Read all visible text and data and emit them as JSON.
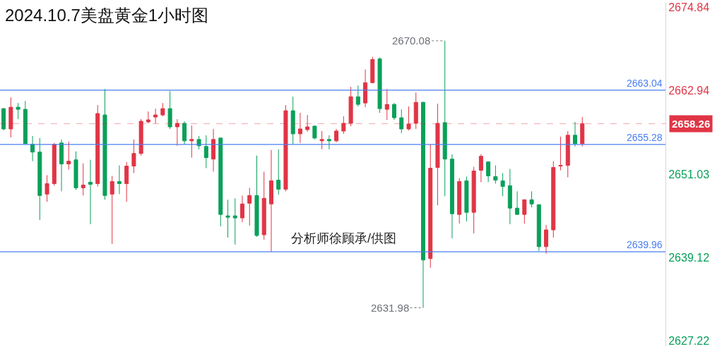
{
  "chart_data": {
    "type": "candlestick",
    "title": "2024.10.7美盘黄金1小时图",
    "categories": [
      null,
      null,
      null,
      null,
      null,
      null,
      null,
      null,
      null,
      null,
      null,
      null,
      null,
      null,
      null,
      null,
      null,
      null,
      null,
      null,
      null,
      null,
      null,
      null,
      null,
      null,
      null,
      null,
      null,
      null,
      null,
      null,
      null,
      null,
      null,
      null,
      null,
      null,
      null,
      null,
      null,
      null,
      null,
      null,
      null,
      null,
      null,
      null,
      null,
      null,
      null,
      null,
      null,
      null,
      null,
      null,
      null,
      null,
      null,
      null,
      null,
      null,
      null,
      null,
      null,
      null,
      null,
      null,
      null,
      null,
      null,
      null,
      null,
      null,
      null,
      null,
      null,
      null,
      null,
      null,
      null,
      null,
      null,
      null,
      null,
      null,
      null,
      null,
      null,
      null,
      null,
      null
    ],
    "ohlc": [
      [
        2660.4,
        2660.5,
        2657.3,
        2657.5
      ],
      [
        2657.5,
        2662.0,
        2656.3,
        2660.6
      ],
      [
        2660.6,
        2661.2,
        2658.9,
        2660.3
      ],
      [
        2660.3,
        2661.5,
        2655.4,
        2655.4
      ],
      [
        2655.3,
        2656.5,
        2652.9,
        2654.2
      ],
      [
        2654.2,
        2656.2,
        2644.5,
        2648.0
      ],
      [
        2648.2,
        2650.9,
        2647.1,
        2649.7
      ],
      [
        2649.7,
        2655.5,
        2649.4,
        2655.3
      ],
      [
        2655.5,
        2656.0,
        2648.6,
        2652.5
      ],
      [
        2652.5,
        2655.7,
        2651.7,
        2652.9
      ],
      [
        2653.1,
        2654.3,
        2648.8,
        2649.1
      ],
      [
        2649.1,
        2652.6,
        2648.0,
        2649.5
      ],
      [
        2649.9,
        2653.1,
        2643.9,
        2649.6
      ],
      [
        2649.7,
        2660.9,
        2649.3,
        2659.7
      ],
      [
        2659.5,
        2663.2,
        2647.4,
        2648.0
      ],
      [
        2648.2,
        2650.8,
        2641.1,
        2650.0
      ],
      [
        2650.0,
        2652.3,
        2648.2,
        2649.7
      ],
      [
        2649.7,
        2652.8,
        2647.1,
        2652.2
      ],
      [
        2652.2,
        2656.0,
        2651.2,
        2654.0
      ],
      [
        2654.0,
        2658.9,
        2653.7,
        2658.6
      ],
      [
        2658.5,
        2660.0,
        2658.3,
        2658.8
      ],
      [
        2659.2,
        2660.4,
        2658.3,
        2659.5
      ],
      [
        2659.5,
        2661.2,
        2659.3,
        2660.4
      ],
      [
        2660.4,
        2662.9,
        2657.5,
        2657.8
      ],
      [
        2657.8,
        2658.9,
        2655.1,
        2658.3
      ],
      [
        2658.3,
        2658.6,
        2655.3,
        2655.8
      ],
      [
        2655.8,
        2658.0,
        2653.4,
        2656.0
      ],
      [
        2656.0,
        2656.5,
        2654.6,
        2655.1
      ],
      [
        2655.0,
        2656.6,
        2651.9,
        2653.4
      ],
      [
        2653.2,
        2657.5,
        2651.4,
        2656.0
      ],
      [
        2656.2,
        2656.2,
        2643.6,
        2645.3
      ],
      [
        2645.1,
        2647.4,
        2642.0,
        2644.9
      ],
      [
        2645.1,
        2647.6,
        2641.0,
        2644.8
      ],
      [
        2644.8,
        2648.0,
        2644.2,
        2646.8
      ],
      [
        2646.9,
        2649.1,
        2643.7,
        2648.0
      ],
      [
        2648.0,
        2653.7,
        2642.1,
        2642.3
      ],
      [
        2642.4,
        2651.4,
        2641.7,
        2647.6
      ],
      [
        2646.8,
        2654.5,
        2640.0,
        2650.1
      ],
      [
        2650.2,
        2654.6,
        2648.1,
        2648.9
      ],
      [
        2648.9,
        2660.9,
        2648.6,
        2660.1
      ],
      [
        2660.1,
        2662.1,
        2655.3,
        2656.8
      ],
      [
        2656.8,
        2659.8,
        2655.5,
        2657.5
      ],
      [
        2657.4,
        2659.5,
        2657.1,
        2657.8
      ],
      [
        2657.9,
        2658.0,
        2656.0,
        2656.2
      ],
      [
        2655.8,
        2657.2,
        2654.6,
        2656.0
      ],
      [
        2656.0,
        2656.6,
        2654.6,
        2655.8
      ],
      [
        2655.8,
        2657.5,
        2655.6,
        2657.2
      ],
      [
        2657.2,
        2659.3,
        2656.8,
        2658.3
      ],
      [
        2658.3,
        2663.5,
        2657.9,
        2662.1
      ],
      [
        2662.1,
        2663.7,
        2660.7,
        2661.0
      ],
      [
        2661.2,
        2666.0,
        2660.6,
        2664.1
      ],
      [
        2664.1,
        2667.8,
        2664.1,
        2667.4
      ],
      [
        2667.5,
        2667.7,
        2659.8,
        2660.4
      ],
      [
        2660.3,
        2663.2,
        2658.8,
        2661.0
      ],
      [
        2661.0,
        2661.2,
        2658.8,
        2659.1
      ],
      [
        2659.1,
        2660.3,
        2656.9,
        2657.5
      ],
      [
        2657.5,
        2660.7,
        2657.3,
        2658.2
      ],
      [
        2658.3,
        2662.7,
        2657.5,
        2661.3
      ],
      [
        2661.3,
        2661.4,
        2631.98,
        2638.8
      ],
      [
        2639.0,
        2655.3,
        2637.7,
        2651.9
      ],
      [
        2652.0,
        2661.1,
        2646.6,
        2658.3
      ],
      [
        2658.4,
        2670.08,
        2647.9,
        2653.2
      ],
      [
        2653.2,
        2653.9,
        2641.9,
        2645.4
      ],
      [
        2645.3,
        2650.5,
        2644.0,
        2650.0
      ],
      [
        2650.1,
        2650.7,
        2644.3,
        2645.6
      ],
      [
        2645.6,
        2652.1,
        2642.6,
        2651.5
      ],
      [
        2651.6,
        2653.9,
        2649.9,
        2653.6
      ],
      [
        2652.8,
        2652.8,
        2649.9,
        2650.8
      ],
      [
        2650.7,
        2652.3,
        2649.7,
        2650.2
      ],
      [
        2650.1,
        2651.2,
        2647.9,
        2649.3
      ],
      [
        2649.4,
        2651.8,
        2643.9,
        2646.2
      ],
      [
        2646.2,
        2648.6,
        2645.3,
        2645.3
      ],
      [
        2645.3,
        2647.4,
        2644.0,
        2647.4
      ],
      [
        2647.4,
        2648.6,
        2646.3,
        2646.8
      ],
      [
        2646.7,
        2646.7,
        2640.1,
        2640.7
      ],
      [
        2640.7,
        2643.8,
        2639.7,
        2643.1
      ],
      [
        2643.1,
        2652.9,
        2642.0,
        2652.0
      ],
      [
        2652.2,
        2656.4,
        2651.6,
        2652.3
      ],
      [
        2652.3,
        2657.2,
        2650.6,
        2656.6
      ],
      [
        2656.6,
        2658.5,
        2655.0,
        2655.4
      ],
      [
        2655.4,
        2659.2,
        2655.0,
        2658.26
      ],
      null,
      null,
      null,
      null,
      null,
      null,
      null,
      null,
      null,
      null,
      null
    ],
    "colors": [
      "#0aa05a",
      "#e03546",
      "#0aa05a",
      "#0aa05a",
      "#0aa05a",
      "#0aa05a",
      "#e03546",
      "#e03546",
      "#0aa05a",
      "#e03546",
      "#0aa05a",
      "#e03546",
      "#0aa05a",
      "#e03546",
      "#0aa05a",
      "#e03546",
      "#0aa05a",
      "#e03546",
      "#e03546",
      "#e03546",
      "#e03546",
      "#e03546",
      "#e03546",
      "#0aa05a",
      "#e03546",
      "#0aa05a",
      "#e03546",
      "#0aa05a",
      "#0aa05a",
      "#e03546",
      "#0aa05a",
      "#0aa05a",
      "#0aa05a",
      "#e03546",
      "#e03546",
      "#0aa05a",
      "#e03546",
      "#e03546",
      "#0aa05a",
      "#e03546",
      "#0aa05a",
      "#e03546",
      "#e03546",
      "#0aa05a",
      "#e03546",
      "#0aa05a",
      "#e03546",
      "#e03546",
      "#e03546",
      "#0aa05a",
      "#e03546",
      "#e03546",
      "#0aa05a",
      "#e03546",
      "#0aa05a",
      "#0aa05a",
      "#e03546",
      "#e03546",
      "#0aa05a",
      "#e03546",
      "#e03546",
      "#0aa05a",
      "#0aa05a",
      "#e03546",
      "#0aa05a",
      "#e03546",
      "#e03546",
      "#0aa05a",
      "#0aa05a",
      "#0aa05a",
      "#0aa05a",
      "#0aa05a",
      "#e03546",
      "#0aa05a",
      "#0aa05a",
      "#e03546",
      "#e03546",
      "#e03546",
      "#e03546",
      "#0aa05a",
      "#e03546",
      null,
      null,
      null,
      null,
      null,
      null,
      null,
      null,
      null,
      null,
      null
    ],
    "ylim": [
      2626.5,
      2675.5
    ],
    "yticks": [
      2627.22,
      2639.12,
      2651.03,
      2662.94,
      2674.84
    ],
    "tick_labels": "y",
    "ref_lines": [
      {
        "axis": "y",
        "value": 2663.04,
        "label": "2663.04",
        "color": "#4a7ef0",
        "line_style": "solid"
      },
      {
        "axis": "y",
        "value": 2655.28,
        "label": "2655.28",
        "color": "#4a7ef0",
        "line_style": "solid"
      },
      {
        "axis": "y",
        "value": 2639.96,
        "label": "2639.96",
        "color": "#4a7ef0",
        "line_style": "solid"
      },
      {
        "axis": "y",
        "value": 2658.26,
        "label": "2658.26",
        "color": "#e03546",
        "line_style": "dashed"
      }
    ],
    "annotations": [
      "2670.08",
      "2631.98",
      "分析师徐顾承/供图"
    ]
  }
}
